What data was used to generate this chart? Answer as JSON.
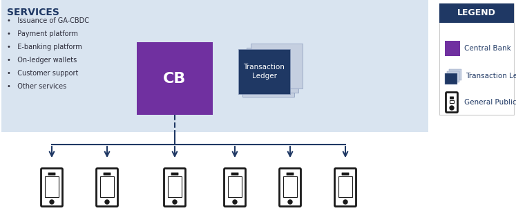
{
  "bg_color": "#d9e4f0",
  "legend_bg": "#1f3864",
  "cb_color": "#7030a0",
  "ledger_front_color": "#1f3864",
  "ledger_back_color": "#c5cfe0",
  "arrow_color": "#1f3864",
  "services_title": "SERVICES",
  "services_title_color": "#1f3864",
  "services_items": [
    "Issuance of GA-CBDC",
    "Payment platform",
    "E-banking platform",
    "On-ledger wallets",
    "Customer support",
    "Other services"
  ],
  "cb_label": "CB",
  "cb_label_color": "#ffffff",
  "ledger_label": "Transaction\nLedger",
  "ledger_label_color": "#ffffff",
  "legend_title": "LEGEND",
  "legend_title_color": "#ffffff",
  "legend_items": [
    "Central Bank",
    "Transaction Ledger",
    "General Public"
  ],
  "n_phones": 6,
  "phone_color": "#1a1a1a",
  "phone_screen_color": "#ffffff",
  "fig_width": 7.47,
  "fig_height": 3.21,
  "dpi": 100
}
